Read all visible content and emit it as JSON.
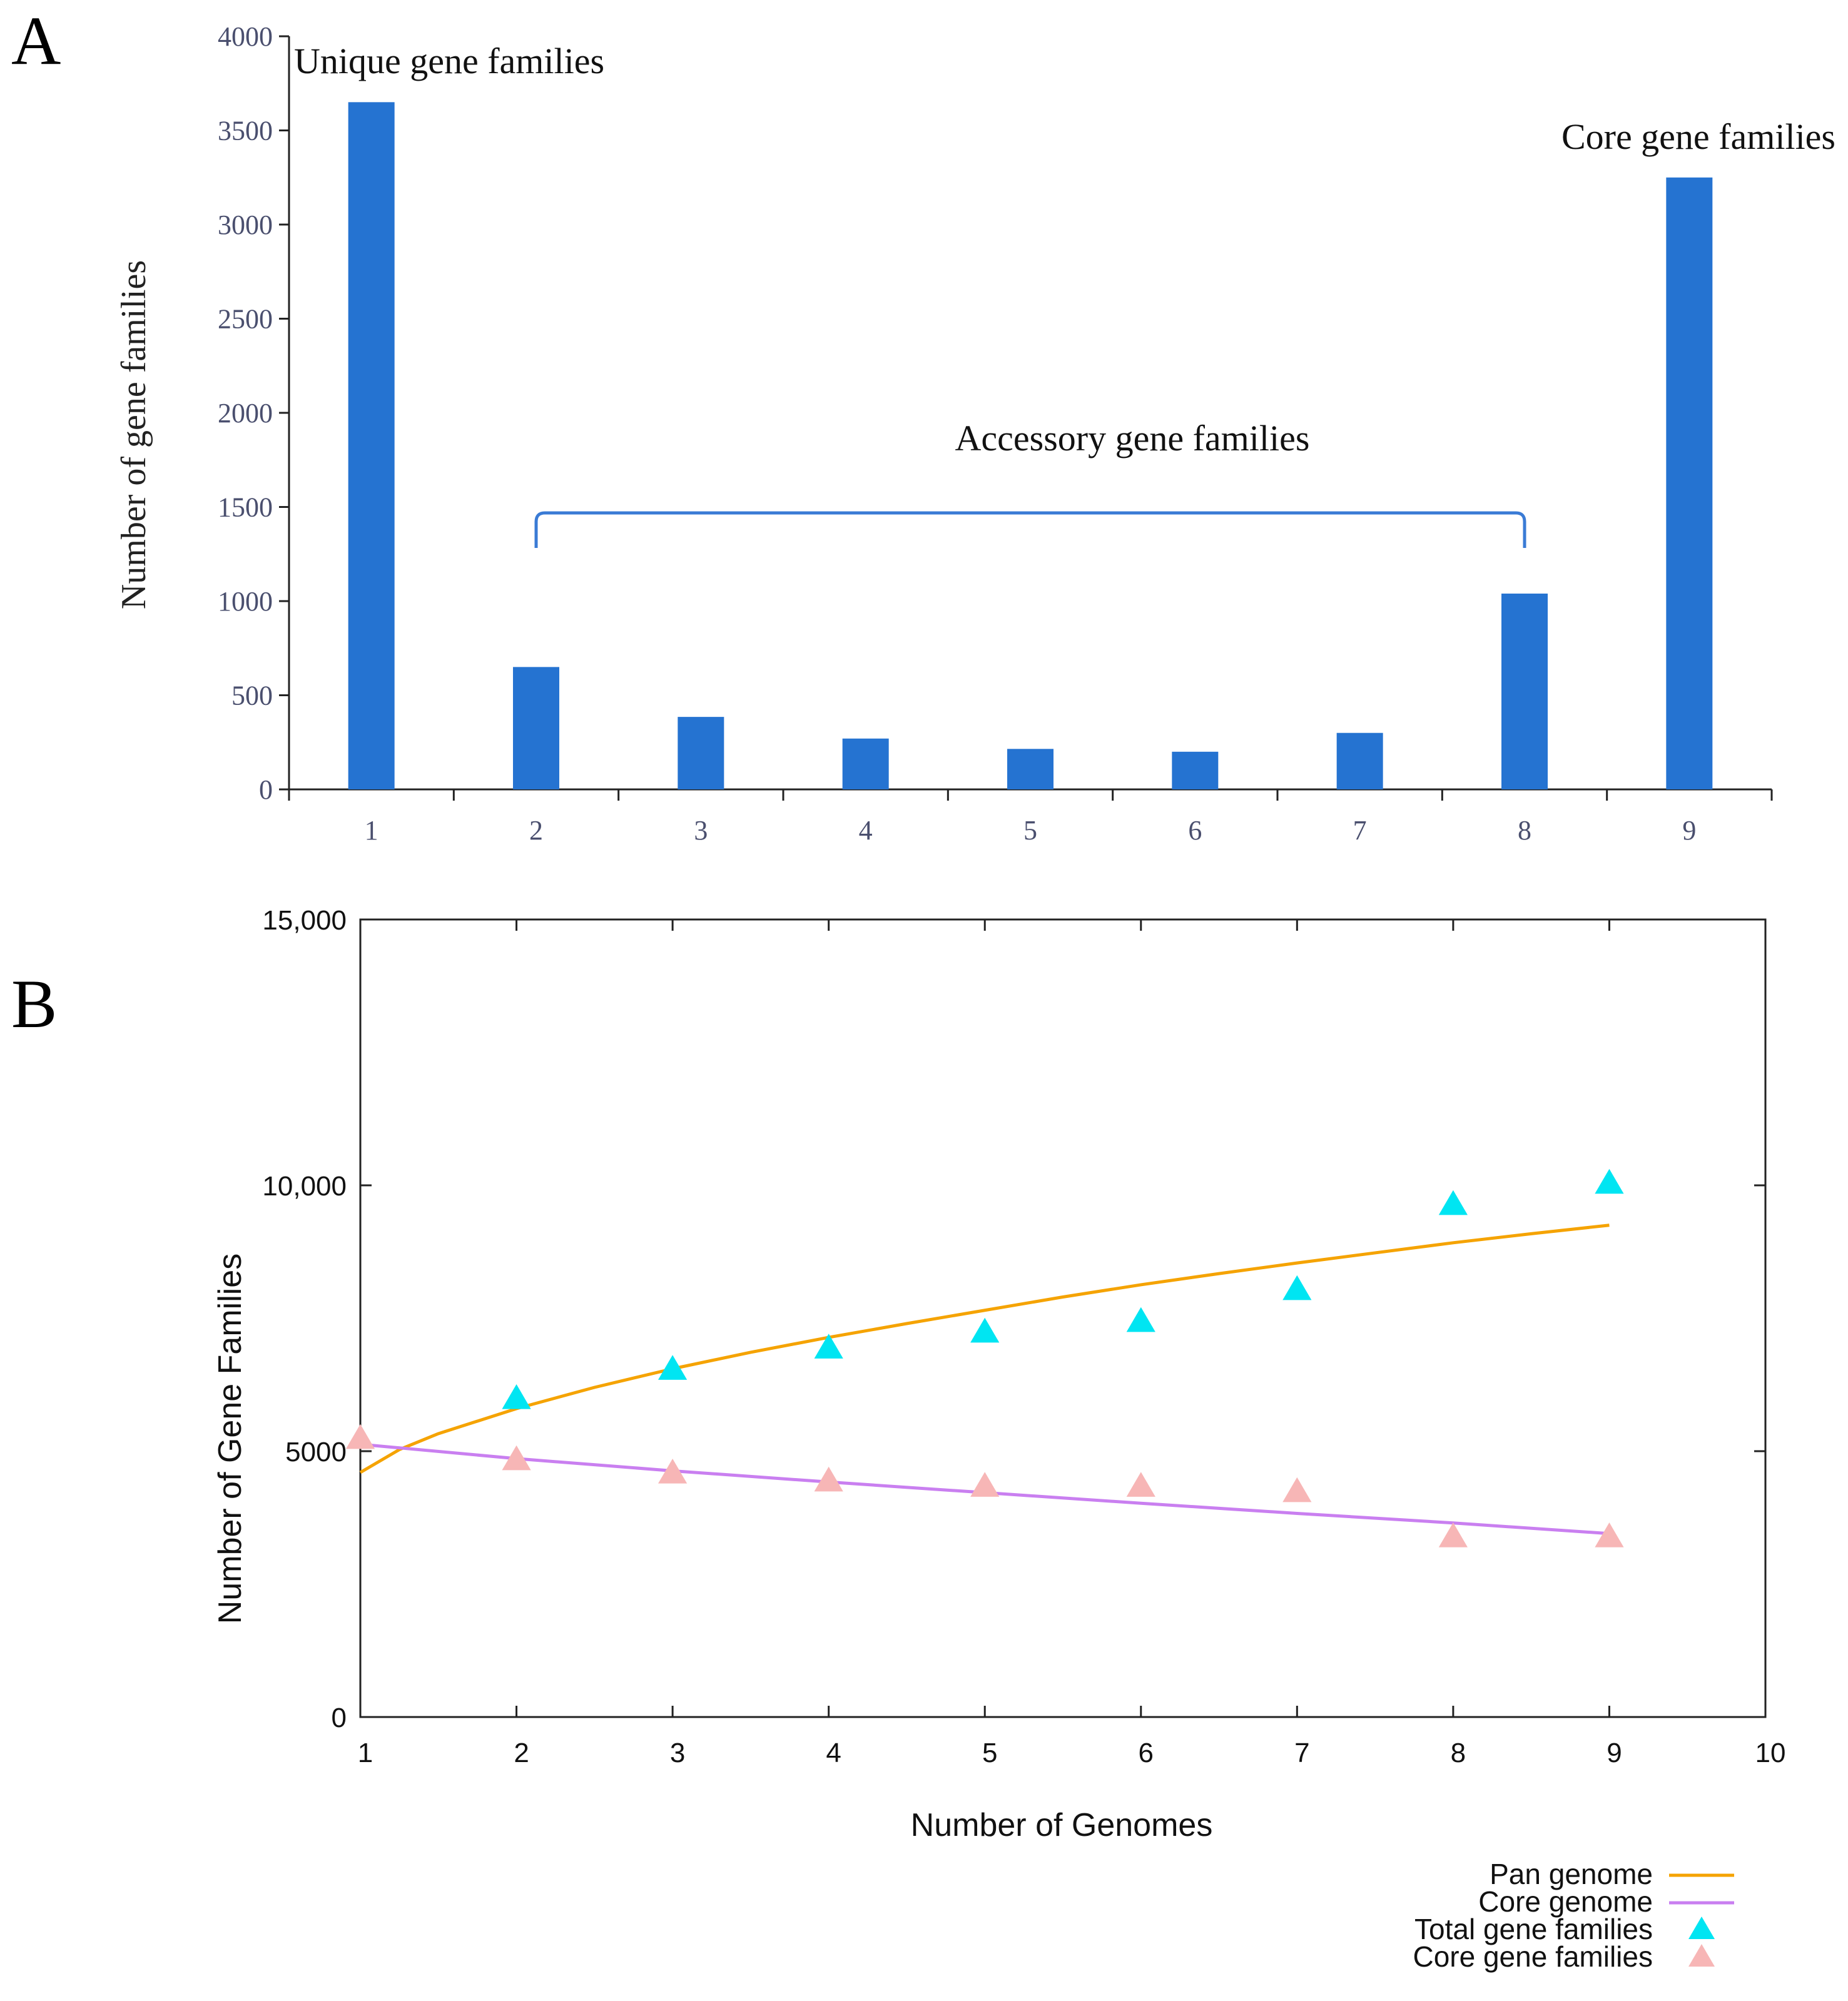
{
  "figure": {
    "panel_a_label": "A",
    "panel_b_label": "B"
  },
  "colors": {
    "bar": "#2573d1",
    "pan": "#f5a300",
    "core_line": "#c97ff0",
    "total_marker": "#00e5f2",
    "core_marker": "#f7b6b6",
    "axis": "#222222"
  },
  "chart_data": [
    {
      "type": "bar",
      "title": "",
      "xlabel": "",
      "ylabel": "Number of gene families",
      "categories": [
        "1",
        "2",
        "3",
        "4",
        "5",
        "6",
        "7",
        "8",
        "9"
      ],
      "values": [
        3650,
        650,
        385,
        270,
        215,
        200,
        300,
        1040,
        3250
      ],
      "ylim": [
        0,
        4000
      ],
      "yticks": [
        "0",
        "500",
        "1000",
        "1500",
        "2000",
        "2500",
        "3000",
        "3500",
        "4000"
      ],
      "annotations": {
        "unique": "Unique gene families",
        "core": "Core gene families",
        "accessory": "Accessory gene families"
      },
      "accessory_range": [
        "2",
        "8"
      ],
      "grid": false
    },
    {
      "type": "scatter",
      "title": "",
      "xlabel": "Number of Genomes",
      "ylabel": "Number of Gene Families",
      "xlim": [
        1,
        10
      ],
      "ylim": [
        0,
        15000
      ],
      "xticks": [
        "1",
        "2",
        "3",
        "4",
        "5",
        "6",
        "7",
        "8",
        "9",
        "10"
      ],
      "yticks": [
        {
          "value": 0,
          "label": "0"
        },
        {
          "value": 5000,
          "label": "5000"
        },
        {
          "value": 10000,
          "label": "10,000"
        },
        {
          "value": 15000,
          "label": "15,000"
        }
      ],
      "series": [
        {
          "name": "Pan genome",
          "kind": "line",
          "x": [
            1,
            1.25,
            1.5,
            2,
            2.5,
            3,
            3.5,
            4,
            4.5,
            5,
            5.5,
            6,
            6.5,
            7,
            7.5,
            8,
            8.5,
            9
          ],
          "values": [
            4600,
            5030,
            5330,
            5800,
            6200,
            6550,
            6860,
            7140,
            7400,
            7650,
            7900,
            8130,
            8340,
            8540,
            8730,
            8920,
            9090,
            9250
          ]
        },
        {
          "name": "Core genome",
          "kind": "line",
          "x": [
            1,
            2,
            3,
            4,
            5,
            6,
            7,
            8,
            9
          ],
          "values": [
            5130,
            4860,
            4630,
            4420,
            4220,
            4020,
            3830,
            3650,
            3450
          ]
        },
        {
          "name": "Total gene families",
          "kind": "marker",
          "x": [
            2,
            3,
            4,
            5,
            6,
            7,
            8,
            9
          ],
          "values": [
            6000,
            6550,
            6950,
            7250,
            7450,
            8050,
            9650,
            10050
          ]
        },
        {
          "name": "Core gene families",
          "kind": "marker",
          "x": [
            1,
            2,
            3,
            4,
            5,
            6,
            7,
            8,
            9
          ],
          "values": [
            5250,
            4850,
            4600,
            4450,
            4350,
            4350,
            4250,
            3400,
            3400
          ]
        }
      ],
      "legend_position": "bottom-right",
      "grid": false
    }
  ]
}
